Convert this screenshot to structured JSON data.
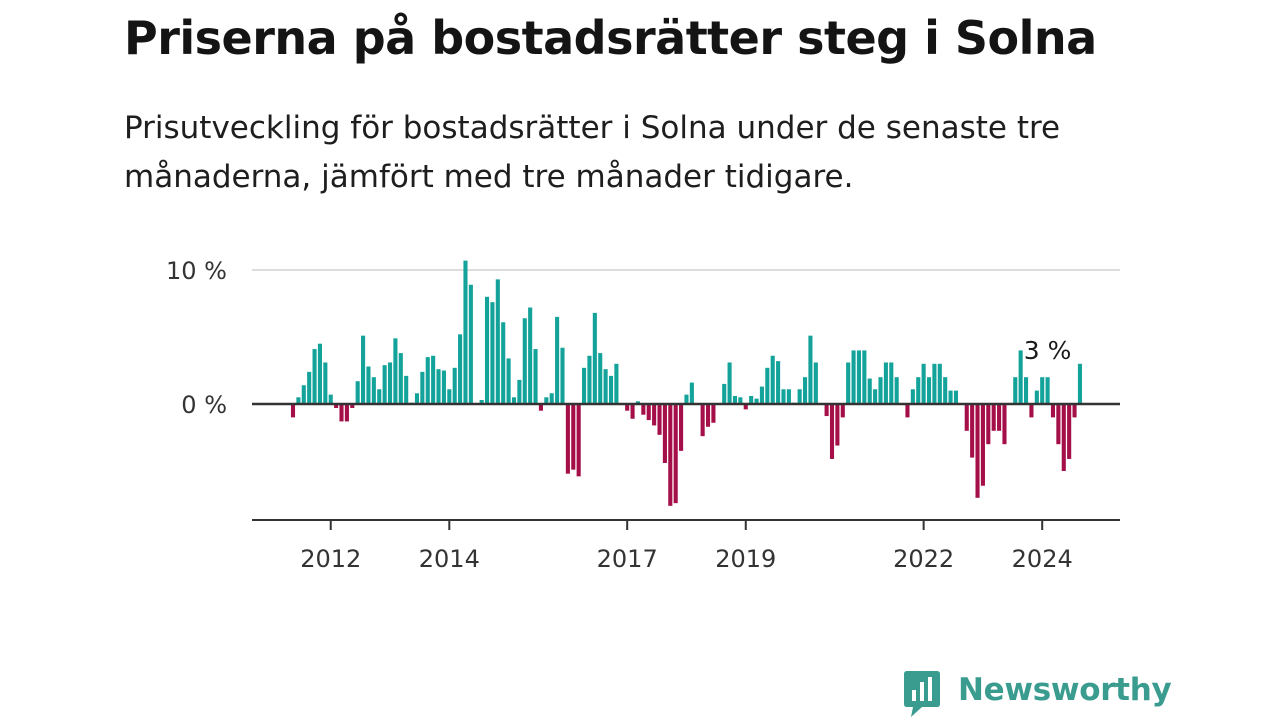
{
  "title": "Priserna på bostadsrätter steg i Solna",
  "subtitle": "Prisutveckling för bostadsrätter i Solna under de senaste tre månaderna, jämfört med tre månader tidigare.",
  "brand": {
    "name": "Newsworthy",
    "color": "#3a9b8f",
    "icon": "bar-chart-speech-bubble-icon"
  },
  "colors": {
    "positive": "#14a39a",
    "negative": "#a50f49",
    "zero_line": "#333333",
    "grid": "#dddddd"
  },
  "chart_data": {
    "type": "bar",
    "title": "Priserna på bostadsrätter steg i Solna",
    "xlabel": "",
    "ylabel": "",
    "ylim": [
      -8.7,
      10.7
    ],
    "y_ticks": [
      {
        "value": 0,
        "label": "0 %"
      },
      {
        "value": 10,
        "label": "10 %"
      }
    ],
    "x_ticks": [
      {
        "index": 7,
        "label": "2012"
      },
      {
        "index": 29,
        "label": "2014"
      },
      {
        "index": 62,
        "label": "2017"
      },
      {
        "index": 84,
        "label": "2019"
      },
      {
        "index": 117,
        "label": "2022"
      },
      {
        "index": 139,
        "label": "2024"
      }
    ],
    "grid": true,
    "annotation": {
      "index": 140,
      "label": "3 %"
    },
    "values": [
      -1,
      0.5,
      1.4,
      2.4,
      4.1,
      4.5,
      3.1,
      0.7,
      -0.3,
      -1.3,
      -1.3,
      -0.3,
      1.7,
      5.1,
      2.8,
      2,
      1.1,
      2.9,
      3.1,
      4.9,
      3.8,
      2.1,
      0.1,
      0.8,
      2.4,
      3.5,
      3.6,
      2.6,
      2.5,
      1.1,
      2.7,
      5.2,
      10.7,
      8.9,
      0,
      0.3,
      8,
      7.6,
      9.3,
      6.1,
      3.4,
      0.5,
      1.8,
      6.4,
      7.2,
      4.1,
      -0.5,
      0.5,
      0.8,
      6.5,
      4.2,
      -5.2,
      -4.9,
      -5.4,
      2.7,
      3.6,
      6.8,
      3.8,
      2.6,
      2.1,
      3,
      0,
      -0.5,
      -1.1,
      0.2,
      -0.8,
      -1.2,
      -1.6,
      -2.3,
      -4.4,
      -7.6,
      -7.4,
      -3.5,
      0.7,
      1.6,
      0,
      -2.4,
      -1.7,
      -1.4,
      0,
      1.5,
      3.1,
      0.6,
      0.5,
      -0.4,
      0.6,
      0.4,
      1.3,
      2.7,
      3.6,
      3.2,
      1.1,
      1.1,
      0.1,
      1.1,
      2,
      5.1,
      3.1,
      0,
      -0.9,
      -4.1,
      -3.1,
      -1,
      3.1,
      4,
      4,
      4,
      1.9,
      1.1,
      2,
      3.1,
      3.1,
      2,
      0,
      -1,
      1.1,
      2,
      3,
      2,
      3,
      3,
      2,
      1,
      1,
      0,
      -2,
      -4,
      -7,
      -6.1,
      -3,
      -2,
      -2,
      -3,
      0,
      2,
      4,
      2,
      -1,
      1,
      2,
      2,
      -1,
      -3,
      -5,
      -4.1,
      -1,
      3
    ]
  }
}
